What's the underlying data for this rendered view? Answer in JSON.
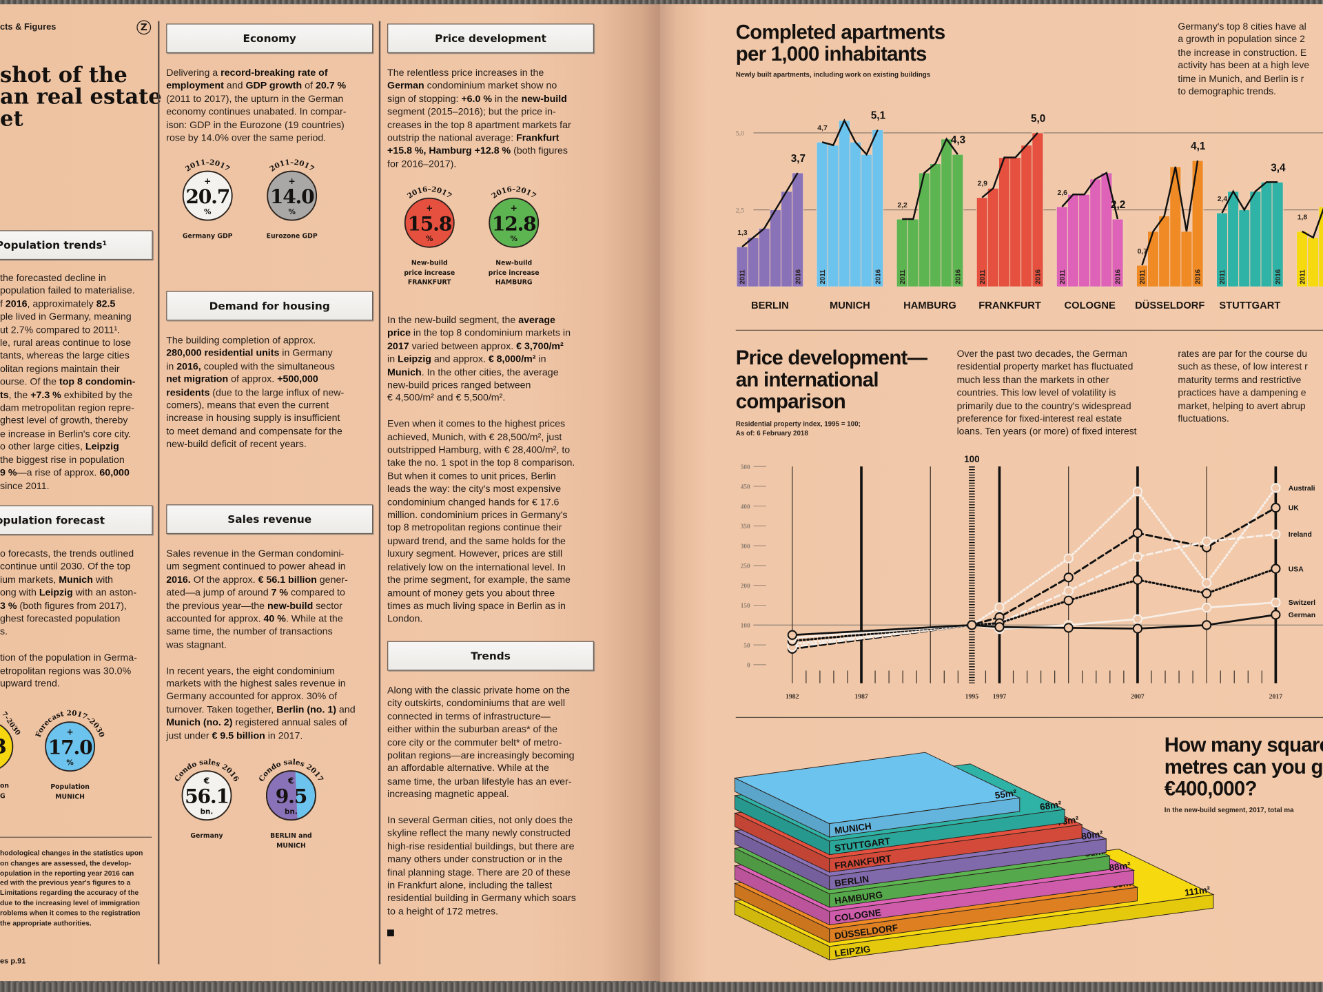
{
  "left_page": {
    "section_label": "cts & Figures",
    "logo_letter": "Z",
    "headline": [
      "shot of the",
      "an real estate",
      "et"
    ],
    "population_trends": {
      "title": "Population trends¹",
      "lines": [
        " the forecasted decline in",
        " population failed to materialise.",
        [
          "f ",
          "2016",
          ", approximately ",
          "82.5"
        ],
        "ple lived in Germany, meaning",
        "ut 2.7% compared to 2011¹.",
        "le, rural areas continue to lose",
        "tants, whereas the large cities",
        "olitan regions maintain their",
        [
          "ourse. Of the ",
          "top 8 condomin-"
        ],
        [
          "",
          "ts",
          ", the ",
          "+7.3 %",
          " exhibited by the"
        ],
        "dam metropolitan region repre-",
        "ghest level of growth, thereby",
        "e increase in Berlin's core city.",
        [
          "o other large cities, ",
          "Leipzig"
        ],
        " the biggest rise in population",
        [
          "",
          "9 %",
          "—a rise of approx. ",
          "60,000"
        ],
        " since 2011."
      ]
    },
    "population_forecast": {
      "title": "opulation forecast",
      "lines": [
        "o forecasts, the trends outlined",
        "continue until 2030. Of the top",
        [
          "ium markets, ",
          "Munich",
          " with"
        ],
        [
          "ong with ",
          "Leipzig",
          " with an aston-"
        ],
        [
          "",
          "3 %",
          " (both figures from 2017),"
        ],
        "ghest forecasted population",
        "s.",
        [],
        "tion of the population in Germa-",
        "etropolitan regions was 30.0%",
        " upward trend."
      ],
      "partial_badge": {
        "arc": "7–2030",
        "value": "3",
        "caption": [
          "on",
          "G"
        ],
        "color": "#f5d60f"
      },
      "badges": [
        {
          "arc": "Forecast 2017–2030",
          "top": "+",
          "value": "17.0",
          "bottom": "%",
          "caption": [
            "Population",
            "MUNICH"
          ],
          "color": "#6cc3ee"
        }
      ]
    },
    "footnote": [
      "hodological changes in the statistics upon",
      "on changes are assessed, the develop-",
      "opulation in the reporting year 2016 can",
      "ed with the previous year's figures to a",
      "Limitations regarding the accuracy of the",
      "due to the increasing level of immigration",
      "roblems when it comes to the registration",
      " the appropriate authorities."
    ],
    "page_ref": "es p.91",
    "economy": {
      "title": "Economy",
      "lines": [
        [
          "Delivering a ",
          "record-breaking rate of"
        ],
        [
          "",
          "employment",
          " and ",
          "GDP growth",
          " of ",
          "20.7 %"
        ],
        "(2011 to 2017), the upturn in the German",
        "economy continues unabated. In compar-",
        "ison: GDP in the Eurozone (19 countries)",
        "rose by 14.0% over the same period."
      ],
      "badges": [
        {
          "arc": "2011–2017",
          "top": "+",
          "value": "20.7",
          "bottom": "%",
          "caption": [
            "Germany GDP"
          ],
          "color": "#f4f2ee"
        },
        {
          "arc": "2011–2017",
          "top": "+",
          "value": "14.0",
          "bottom": "%",
          "caption": [
            "Eurozone GDP"
          ],
          "color": "#a9a8a6"
        }
      ]
    },
    "demand": {
      "title": "Demand for housing",
      "lines": [
        "The building completion of approx.",
        [
          "",
          "280,000 residential units",
          " in Germany"
        ],
        [
          "in ",
          "2016,",
          " coupled with the simultaneous"
        ],
        [
          "",
          "net migration",
          " of approx. ",
          "+500,000"
        ],
        [
          "",
          "residents",
          " (due to the large influx of new-"
        ],
        "comers), means that even the current",
        "increase in housing supply is insufficient",
        "to meet demand and compensate for the",
        "new-build deficit of recent years."
      ]
    },
    "sales": {
      "title": "Sales revenue",
      "lines": [
        "Sales revenue in the German condomini-",
        "um segment continued to power ahead in",
        [
          "",
          "2016.",
          " Of the approx. ",
          "€ 56.1 billion",
          " gener-"
        ],
        [
          "ated—a jump of around ",
          "7 %",
          " compared to"
        ],
        [
          "the previous year—the ",
          "new-build",
          " sector"
        ],
        [
          "accounted for approx. ",
          "40 %",
          ". While at the"
        ],
        "same time, the number of transactions",
        "was stagnant.",
        [],
        "In recent years, the eight condominium",
        "markets with the highest sales revenue in",
        "Germany accounted for approx. 30% of",
        [
          "turnover. Taken together, ",
          "Berlin (no. 1)",
          " and"
        ],
        [
          "",
          "Munich (no. 2)",
          " registered annual sales of"
        ],
        [
          "just under ",
          "€ 9.5 billion",
          " in 2017."
        ]
      ],
      "badges": [
        {
          "arc": "Condo sales 2016",
          "top": "€",
          "value": "56.1",
          "bottom": "bn.",
          "caption": [
            "Germany"
          ],
          "color": "#f4f2ee"
        },
        {
          "arc": "Condo sales 2017",
          "top": "€",
          "value": "9.5",
          "bottom": "bn.",
          "caption": [
            "BERLIN and",
            "MUNICH"
          ],
          "color": "#6cc3ee",
          "split_color": "#8a72b9"
        }
      ]
    },
    "price": {
      "title": "Price development",
      "lines": [
        "The relentless price increases in the",
        [
          "",
          "German",
          " condominium market show no"
        ],
        [
          "sign of stopping: ",
          "+6.0 %",
          " in the ",
          "new-build"
        ],
        "segment (2015–2016); but the price in-",
        "creases in the top 8 apartment markets far",
        [
          "outstrip the national average: ",
          "Frankfurt"
        ],
        [
          "",
          "+15.8 %, Hamburg +12.8 %",
          " (both figures"
        ],
        "for 2016–2017)."
      ],
      "badges": [
        {
          "arc": "2016–2017",
          "top": "+",
          "value": "15.8",
          "bottom": "%",
          "caption": [
            "New-build",
            "price increase",
            "FRANKFURT"
          ],
          "color": "#e5503f"
        },
        {
          "arc": "2016–2017",
          "top": "+",
          "value": "12.8",
          "bottom": "%",
          "caption": [
            "New-build",
            "price increase",
            "HAMBURG"
          ],
          "color": "#5db552"
        }
      ],
      "lines2": [
        [
          "In the new-build segment, the ",
          "average"
        ],
        [
          "",
          "price",
          " in the top 8 condominium markets in"
        ],
        [
          "",
          "2017",
          " varied between approx. ",
          "€ 3,700/m²"
        ],
        [
          "in ",
          "Leipzig",
          " and approx. ",
          "€ 8,000/m²",
          " in"
        ],
        [
          "",
          "Munich",
          ". In the other cities, the average"
        ],
        "new-build prices ranged between",
        "€ 4,500/m² and € 5,500/m².",
        [],
        "Even when it comes to the highest prices",
        "achieved, Munich, with € 28,500/m², just",
        "outstripped Hamburg, with € 28,400/m², to",
        "take the no. 1 spot in the top 8 comparison.",
        "But when it comes to unit prices, Berlin",
        "leads the way: the city's most expensive",
        "condominium changed hands for € 17.6",
        "million. condominium prices in Germany's",
        "top 8 metropolitan regions continue their",
        "upward trend, and the same holds for the",
        "luxury segment. However, prices are still",
        "relatively low on the international level. In",
        "the prime segment, for example, the same",
        "amount of money gets you about three",
        "times as much living space in Berlin as in",
        "London."
      ]
    },
    "trends": {
      "title": "Trends",
      "lines": [
        "Along with the classic private home on the",
        "city outskirts, condominiums that are well",
        "connected in terms of infrastructure—",
        "either within the suburban areas* of the",
        "core city or the commuter belt* of metro-",
        "politan regions—are increasingly becoming",
        "an affordable alternative. While at the",
        "same time, the urban lifestyle has an ever-",
        "increasing magnetic appeal.",
        [],
        "In several German cities, not only does the",
        "skyline reflect the many newly constructed",
        "high-rise residential buildings, but there are",
        "many others under construction or in the",
        "final planning stage. There are 20 of these",
        "in Frankfurt alone, including the tallest",
        "residential building in Germany which soars",
        "to a height of 172 metres."
      ]
    }
  },
  "right_page": {
    "apartments": {
      "title": [
        "Completed apartments",
        "per 1,000 inhabitants"
      ],
      "subtitle": "Newly built apartments, including work on existing buildings",
      "intro": [
        "Germany's top 8 cities have al",
        "a growth in population since 2",
        "the increase in construction. E",
        "activity has been at a high leve",
        "time in Munich, and Berlin is r",
        "to demographic trends."
      ]
    },
    "international": {
      "title": [
        "Price development—",
        "an international",
        "comparison"
      ],
      "subtitle": [
        "Residential property index, 1995 = 100;",
        "As of: 6 February 2018"
      ],
      "text_col1": [
        "Over the past two decades, the German",
        "residential property market has fluctuated",
        "much less than the markets in other",
        "countries. This low level of volatility is",
        "primarily due to the country's widespread",
        "preference for fixed-interest real estate",
        "loans. Ten years (or more) of fixed interest"
      ],
      "text_col2": [
        "rates are par for the course du",
        "such as these, of low interest r",
        "maturity terms and restrictive",
        "practices have a dampening e",
        "market, helping to avert abrup",
        "fluctuations."
      ]
    },
    "squares": {
      "title": [
        "How many square",
        "metres can you g",
        "€400,000?"
      ],
      "subtitle": "In the new-build segment, 2017, total ma"
    }
  },
  "chart_data": [
    {
      "type": "bar",
      "title": "Completed apartments per 1,000 inhabitants",
      "x_years": [
        "2011",
        "2016"
      ],
      "ylim": [
        0,
        5.5
      ],
      "gridlines": [
        {
          "value": 5.0,
          "label": "5,0"
        },
        {
          "value": 2.5,
          "label": "2,5"
        }
      ],
      "cities": [
        {
          "name": "BERLIN",
          "color": "#8a72b9",
          "values": [
            1.3,
            1.6,
            1.9,
            2.5,
            3.1,
            3.7
          ],
          "first_label": "1,3",
          "last_label": "3,7"
        },
        {
          "name": "MUNICH",
          "color": "#6cc3ee",
          "values": [
            4.7,
            4.6,
            5.4,
            4.7,
            4.3,
            5.1
          ],
          "first_label": "4,7",
          "last_label": "5,1"
        },
        {
          "name": "HAMBURG",
          "color": "#5db552",
          "values": [
            2.2,
            2.2,
            3.7,
            4.0,
            4.8,
            4.3
          ],
          "first_label": "2,2",
          "last_label": "4,3"
        },
        {
          "name": "FRANKFURT",
          "color": "#e5503f",
          "values": [
            2.9,
            3.2,
            4.2,
            4.2,
            4.6,
            5.0
          ],
          "first_label": "2,9",
          "last_label": "5,0"
        },
        {
          "name": "COLOGNE",
          "color": "#de63b8",
          "values": [
            2.6,
            3.0,
            3.0,
            3.5,
            3.7,
            2.2
          ],
          "first_label": "2,6",
          "last_label": "2,2"
        },
        {
          "name": "DÜSSELDORF",
          "color": "#ef8a25",
          "values": [
            0.7,
            1.8,
            2.3,
            3.9,
            1.8,
            4.1
          ],
          "first_label": "0,7",
          "last_label": "4,1"
        },
        {
          "name": "STUTTGART",
          "color": "#2fb3a6",
          "values": [
            2.4,
            3.1,
            2.5,
            3.1,
            3.4,
            3.4
          ],
          "first_label": "2,4",
          "last_label": "3,4"
        },
        {
          "name": "LE",
          "color": "#f6d90f",
          "values": [
            1.8,
            1.6,
            2.6
          ],
          "first_label": "1,8"
        }
      ]
    },
    {
      "type": "line",
      "title": "Price development—an international comparison",
      "ylabel": "Residential property index, 1995 = 100",
      "ylim": [
        0,
        500
      ],
      "yticks": [
        "0",
        "50",
        "100",
        "150",
        "200",
        "250",
        "300",
        "350",
        "400",
        "450",
        "500"
      ],
      "xlim": [
        1982,
        2017
      ],
      "xtick_labels": [
        "1982",
        "1987",
        "1995",
        "1997",
        "2007",
        "2017"
      ],
      "base_label": "100",
      "x": [
        1982,
        1995,
        1997,
        2002,
        2007,
        2012,
        2017
      ],
      "series": [
        {
          "name": "Australi",
          "style": "white-dotted",
          "values": [
            52,
            100,
            145,
            268,
            437,
            206,
            446
          ]
        },
        {
          "name": "UK",
          "style": "black-dashed",
          "values": [
            40,
            100,
            120,
            220,
            332,
            296,
            396
          ]
        },
        {
          "name": "Ireland",
          "style": "white-dashed",
          "values": [
            45,
            100,
            105,
            186,
            272,
            311,
            329
          ]
        },
        {
          "name": "USA",
          "style": "black-dotted",
          "values": [
            60,
            100,
            105,
            162,
            214,
            180,
            242
          ]
        },
        {
          "name": "Switzerl",
          "style": "white-solid",
          "values": [
            68,
            100,
            90,
            100,
            115,
            144,
            157
          ]
        },
        {
          "name": "German",
          "style": "black-solid",
          "values": [
            75,
            100,
            95,
            93,
            91,
            100,
            126
          ]
        }
      ]
    },
    {
      "type": "bar",
      "title": "How many square metres can you get for €400,000?",
      "unit": "m²",
      "items": [
        {
          "city": "LEIPZIG",
          "value": 111,
          "label": "111m²",
          "color": "#f6d90f"
        },
        {
          "city": "DÜSSELDORF",
          "value": 89,
          "label": "89m²",
          "color": "#ef8a25"
        },
        {
          "city": "COLOGNE",
          "value": 88,
          "label": "88m²",
          "color": "#de63b8"
        },
        {
          "city": "HAMBURG",
          "value": 81,
          "label": "81m²",
          "color": "#5db552"
        },
        {
          "city": "BERLIN",
          "value": 80,
          "label": "80m²",
          "color": "#8a72b9"
        },
        {
          "city": "FRANKFURT",
          "value": 73,
          "label": "73m²",
          "color": "#e5503f"
        },
        {
          "city": "STUTTGART",
          "value": 68,
          "label": "68m²",
          "color": "#2fb3a6"
        },
        {
          "city": "MUNICH",
          "value": 55,
          "label": "55m²",
          "color": "#6cc3ee"
        }
      ]
    }
  ]
}
